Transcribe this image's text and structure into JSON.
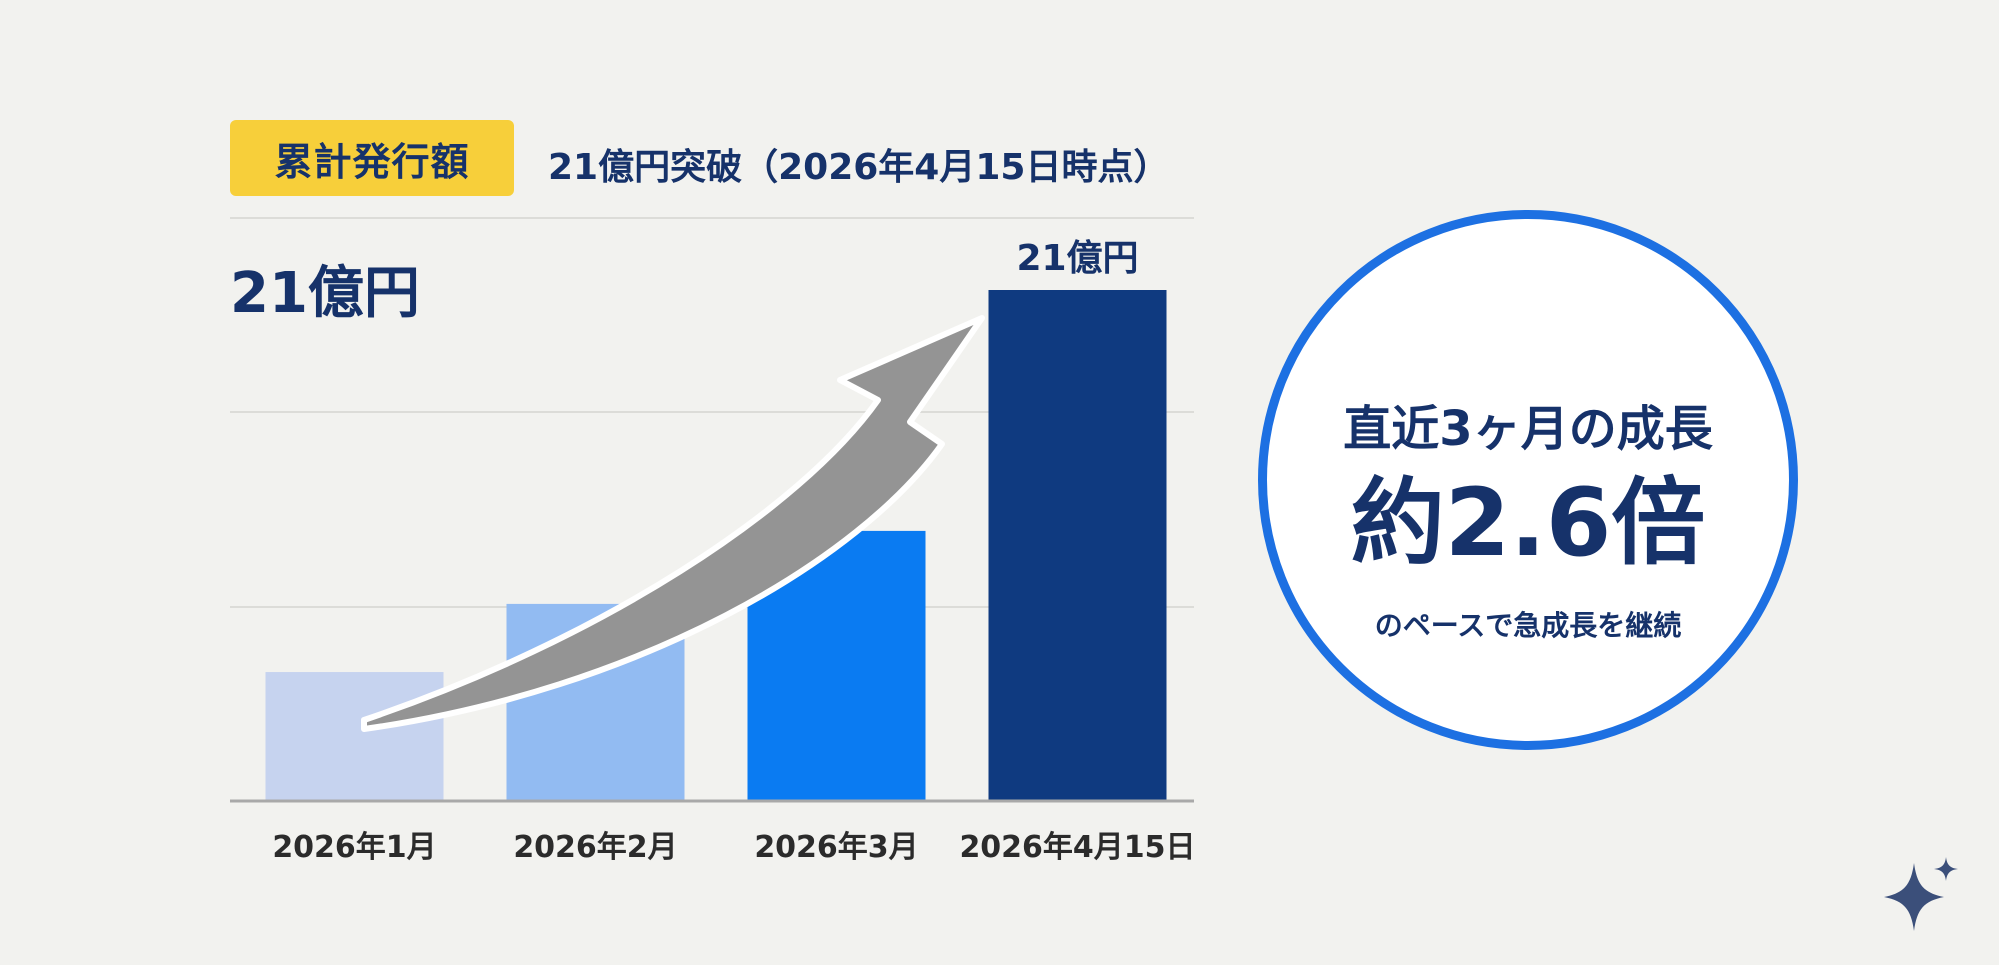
{
  "header": {
    "badge_label": "累計発行額",
    "headline": "21億円突破（2026年4月15日時点）",
    "total_label": "21億円"
  },
  "chart_data": {
    "type": "bar",
    "categories": [
      "2026年1月",
      "2026年2月",
      "2026年3月",
      "2026年4月15日"
    ],
    "values": [
      5.3,
      8.1,
      11.1,
      21
    ],
    "unit": "億円",
    "ylim": [
      0,
      21
    ],
    "grid": true,
    "bar_colors": [
      "#c6d3ef",
      "#92bbf2",
      "#0a7bf2",
      "#0f3a80"
    ],
    "data_labels": [
      {
        "category": "2026年4月15日",
        "text": "21億円"
      }
    ],
    "annotation": "trend-arrow"
  },
  "highlight": {
    "line1": "直近3ヶ月の成長",
    "line2": "約2.6倍",
    "line3": "のペースで急成長を継続"
  },
  "colors": {
    "background": "#f2f2ef",
    "badge": "#f7cf3a",
    "text_navy": "#16326a",
    "circle_border": "#1d70e2",
    "arrow": "#949494"
  },
  "icons": {
    "corner": "sparkle-icon"
  }
}
